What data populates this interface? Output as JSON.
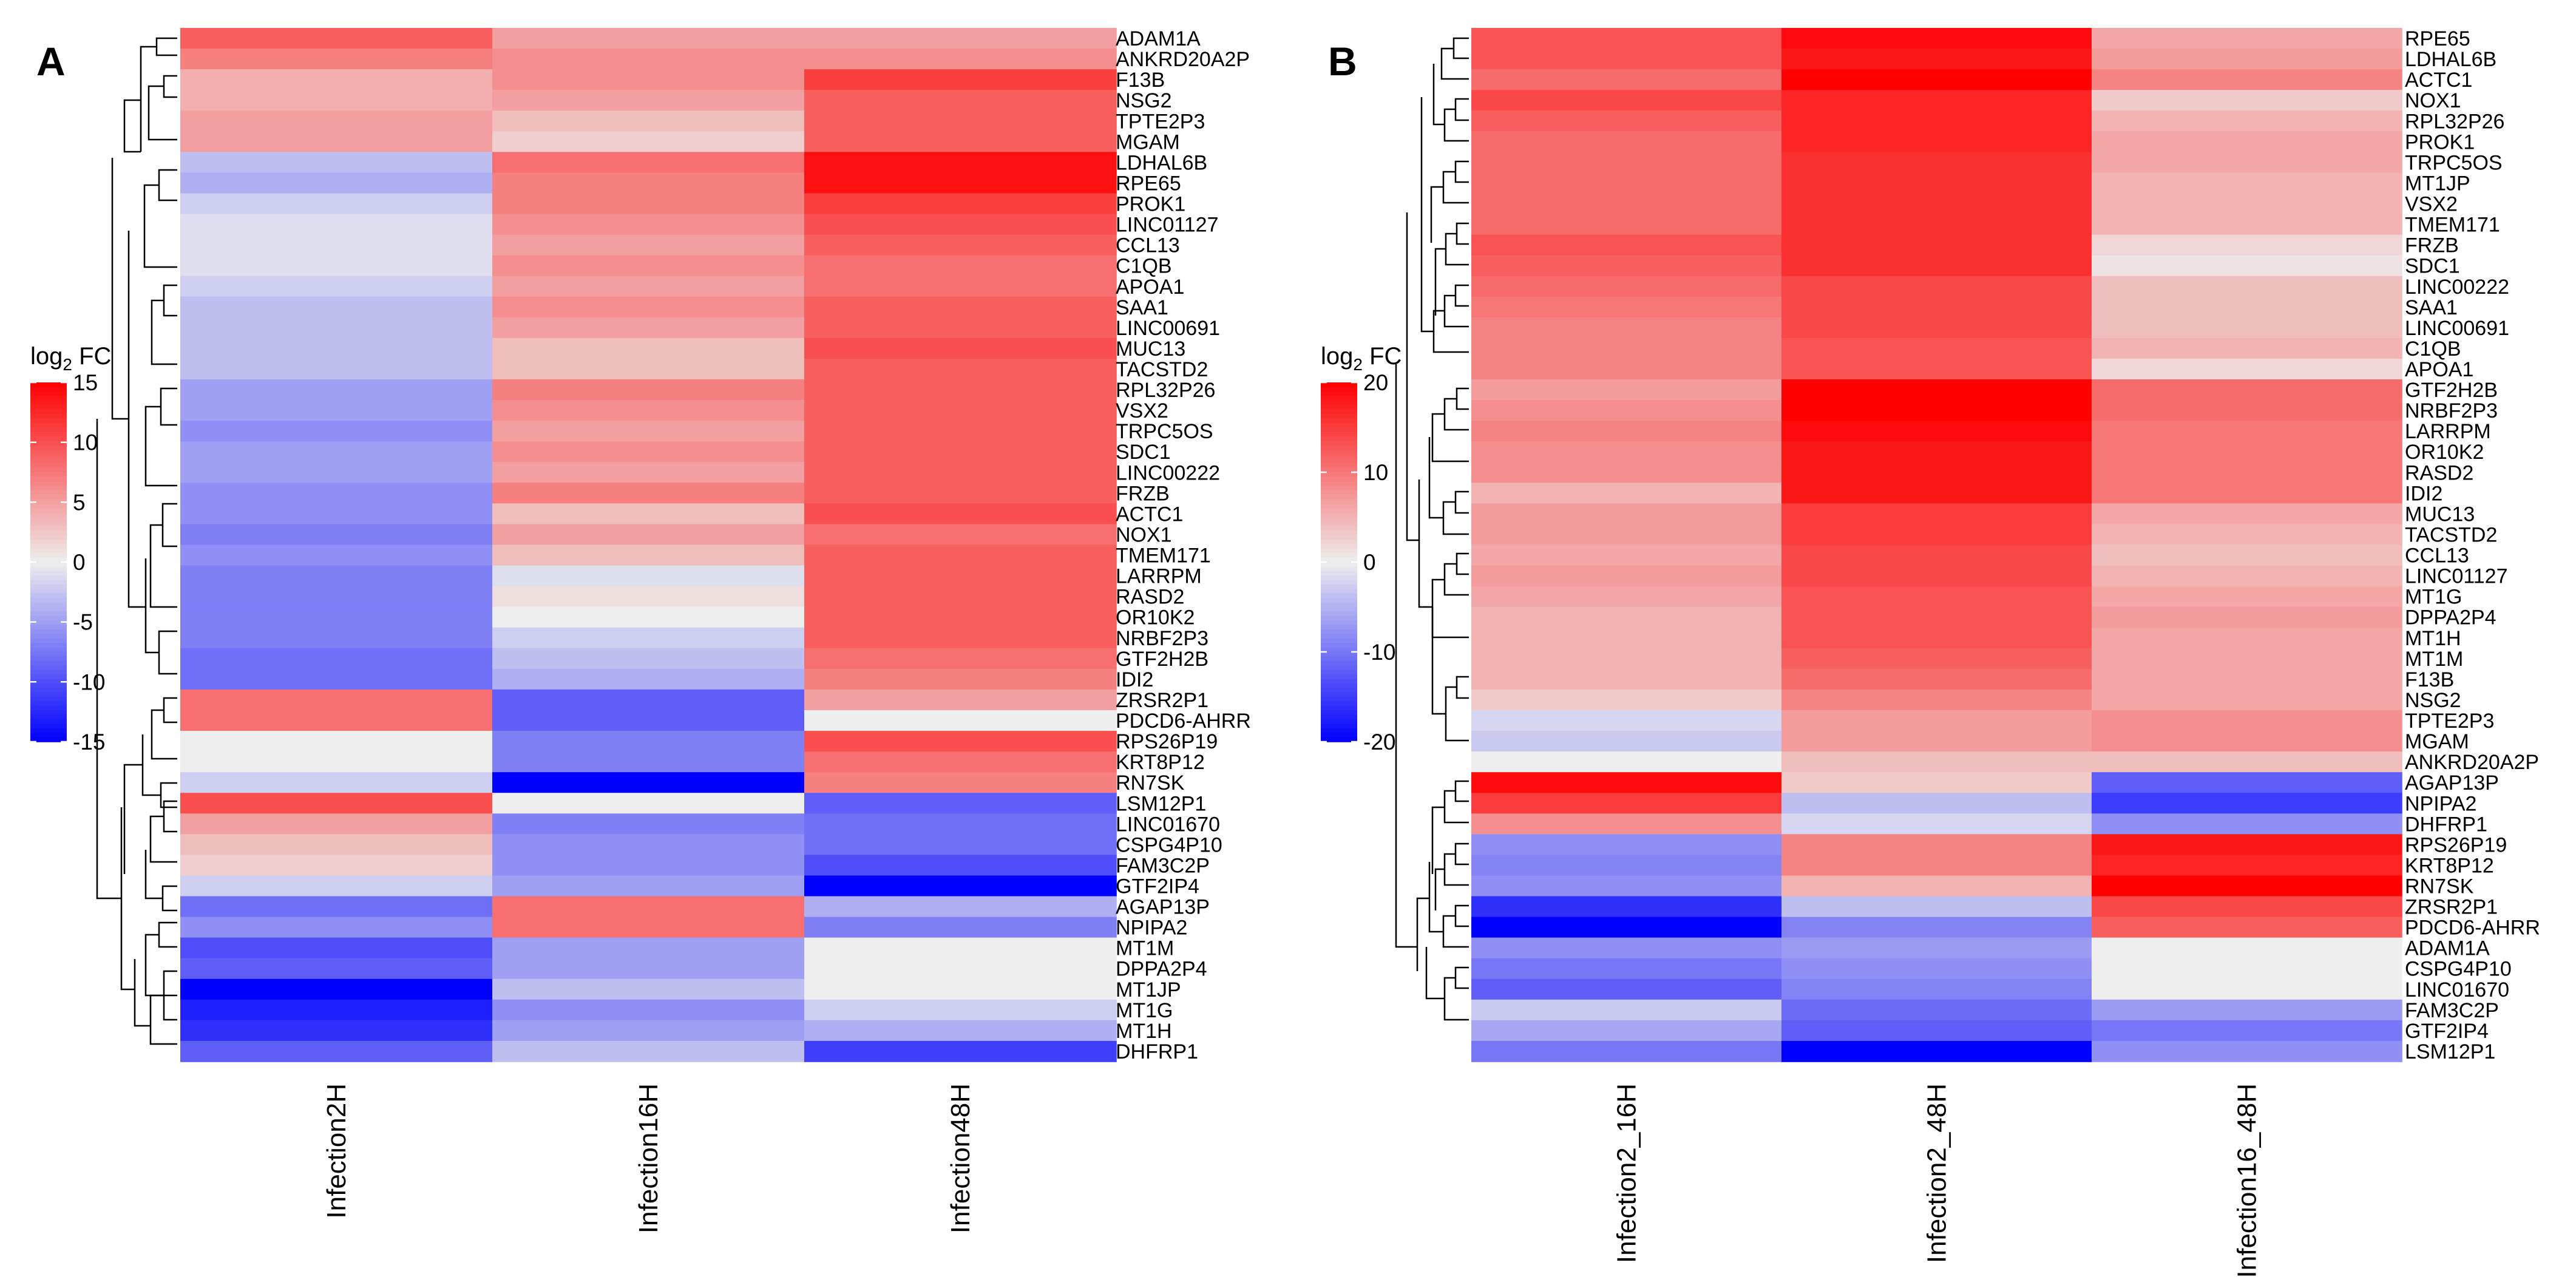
{
  "chart_data": [
    {
      "type": "heatmap",
      "panel": "A",
      "legend": {
        "title_base": "log",
        "title_sub": "2",
        "title_suffix": " FC",
        "range": [
          -15,
          15
        ],
        "ticks": [
          15,
          10,
          5,
          0,
          -5,
          -10,
          -15
        ]
      },
      "colors": {
        "low": "#0000ff",
        "mid": "#eeeeee",
        "high": "#ff0000"
      },
      "columns": [
        "Infection2H",
        "Infection16H",
        "Infection48H"
      ],
      "rows": [
        {
          "gene": "ADAM1A",
          "values": [
            9,
            5,
            5
          ]
        },
        {
          "gene": "ANKRD20A2P",
          "values": [
            7,
            6,
            6
          ]
        },
        {
          "gene": "F13B",
          "values": [
            4,
            6,
            11
          ]
        },
        {
          "gene": "NSG2",
          "values": [
            4,
            5,
            9
          ]
        },
        {
          "gene": "TPTE2P3",
          "values": [
            5,
            3,
            9
          ]
        },
        {
          "gene": "MGAM",
          "values": [
            5,
            2,
            9
          ]
        },
        {
          "gene": "LDHAL6B",
          "values": [
            -3,
            8,
            14
          ]
        },
        {
          "gene": "RPE65",
          "values": [
            -4,
            7,
            14
          ]
        },
        {
          "gene": "PROK1",
          "values": [
            -2,
            7,
            11
          ]
        },
        {
          "gene": "LINC01127",
          "values": [
            -1,
            6,
            10
          ]
        },
        {
          "gene": "CCL13",
          "values": [
            -1,
            5,
            9
          ]
        },
        {
          "gene": "C1QB",
          "values": [
            -1,
            6,
            8
          ]
        },
        {
          "gene": "APOA1",
          "values": [
            -2,
            5,
            8
          ]
        },
        {
          "gene": "SAA1",
          "values": [
            -3,
            6,
            9
          ]
        },
        {
          "gene": "LINC00691",
          "values": [
            -3,
            5,
            9
          ]
        },
        {
          "gene": "MUC13",
          "values": [
            -3,
            3,
            10
          ]
        },
        {
          "gene": "TACSTD2",
          "values": [
            -3,
            3,
            9
          ]
        },
        {
          "gene": "RPL32P26",
          "values": [
            -5,
            7,
            9
          ]
        },
        {
          "gene": "VSX2",
          "values": [
            -5,
            6,
            9
          ]
        },
        {
          "gene": "TRPC5OS",
          "values": [
            -6,
            5,
            9
          ]
        },
        {
          "gene": "SDC1",
          "values": [
            -5,
            6,
            9
          ]
        },
        {
          "gene": "LINC00222",
          "values": [
            -5,
            5,
            9
          ]
        },
        {
          "gene": "FRZB",
          "values": [
            -6,
            7,
            9
          ]
        },
        {
          "gene": "ACTC1",
          "values": [
            -6,
            3,
            10
          ]
        },
        {
          "gene": "NOX1",
          "values": [
            -7,
            5,
            8
          ]
        },
        {
          "gene": "TMEM171",
          "values": [
            -6,
            3,
            9
          ]
        },
        {
          "gene": "LARRPM",
          "values": [
            -7,
            -1,
            9
          ]
        },
        {
          "gene": "RASD2",
          "values": [
            -7,
            1,
            9
          ]
        },
        {
          "gene": "OR10K2",
          "values": [
            -7,
            0,
            9
          ]
        },
        {
          "gene": "NRBF2P3",
          "values": [
            -7,
            -2,
            9
          ]
        },
        {
          "gene": "GTF2H2B",
          "values": [
            -8,
            -3,
            8
          ]
        },
        {
          "gene": "IDI2",
          "values": [
            -8,
            -4,
            7
          ]
        },
        {
          "gene": "ZRSR2P1",
          "values": [
            8,
            -9,
            5
          ]
        },
        {
          "gene": "PDCD6-AHRR",
          "values": [
            8,
            -9,
            0
          ]
        },
        {
          "gene": "RPS26P19",
          "values": [
            0,
            -7,
            10
          ]
        },
        {
          "gene": "KRT8P12",
          "values": [
            0,
            -7,
            8
          ]
        },
        {
          "gene": "RN7SK",
          "values": [
            -2,
            -15,
            7
          ]
        },
        {
          "gene": "LSM12P1",
          "values": [
            10,
            0,
            -9
          ]
        },
        {
          "gene": "LINC01670",
          "values": [
            5,
            -7,
            -8
          ]
        },
        {
          "gene": "CSPG4P10",
          "values": [
            3,
            -6,
            -8
          ]
        },
        {
          "gene": "FAM3C2P",
          "values": [
            2,
            -6,
            -10
          ]
        },
        {
          "gene": "GTF2IP4",
          "values": [
            -2,
            -5,
            -15
          ]
        },
        {
          "gene": "AGAP13P",
          "values": [
            -8,
            8,
            -4
          ]
        },
        {
          "gene": "NPIPA2",
          "values": [
            -6,
            8,
            -7
          ]
        },
        {
          "gene": "MT1M",
          "values": [
            -10,
            -5,
            0
          ]
        },
        {
          "gene": "DPPA2P4",
          "values": [
            -9,
            -5,
            0
          ]
        },
        {
          "gene": "MT1JP",
          "values": [
            -15,
            -3,
            0
          ]
        },
        {
          "gene": "MT1G",
          "values": [
            -13,
            -6,
            -2
          ]
        },
        {
          "gene": "MT1H",
          "values": [
            -12,
            -5,
            -4
          ]
        },
        {
          "gene": "DHFRP1",
          "values": [
            -9,
            -3,
            -11
          ]
        }
      ]
    },
    {
      "type": "heatmap",
      "panel": "B",
      "legend": {
        "title_base": "log",
        "title_sub": "2",
        "title_suffix": " FC",
        "range": [
          -20,
          20
        ],
        "ticks": [
          20,
          10,
          0,
          -10,
          -20
        ]
      },
      "colors": {
        "low": "#0000ff",
        "mid": "#eeeeee",
        "high": "#ff0000"
      },
      "columns": [
        "Infection2_16H",
        "Infection2_48H",
        "Infection16_48H"
      ],
      "rows": [
        {
          "gene": "RPE65",
          "values": [
            13,
            19,
            6
          ]
        },
        {
          "gene": "LDHAL6B",
          "values": [
            13,
            18,
            7
          ]
        },
        {
          "gene": "ACTC1",
          "values": [
            11,
            20,
            9
          ]
        },
        {
          "gene": "NOX1",
          "values": [
            14,
            17,
            3
          ]
        },
        {
          "gene": "RPL32P26",
          "values": [
            12,
            17,
            5
          ]
        },
        {
          "gene": "PROK1",
          "values": [
            11,
            17,
            6
          ]
        },
        {
          "gene": "TRPC5OS",
          "values": [
            11,
            16,
            6
          ]
        },
        {
          "gene": "MT1JP",
          "values": [
            11,
            16,
            5
          ]
        },
        {
          "gene": "VSX2",
          "values": [
            11,
            16,
            5
          ]
        },
        {
          "gene": "TMEM171",
          "values": [
            11,
            16,
            5
          ]
        },
        {
          "gene": "FRZB",
          "values": [
            13,
            16,
            2
          ]
        },
        {
          "gene": "SDC1",
          "values": [
            12,
            16,
            1
          ]
        },
        {
          "gene": "LINC00222",
          "values": [
            11,
            14,
            4
          ]
        },
        {
          "gene": "SAA1",
          "values": [
            10,
            14,
            4
          ]
        },
        {
          "gene": "LINC00691",
          "values": [
            9,
            14,
            4
          ]
        },
        {
          "gene": "C1QB",
          "values": [
            9,
            13,
            5
          ]
        },
        {
          "gene": "APOA1",
          "values": [
            9,
            13,
            2
          ]
        },
        {
          "gene": "GTF2H2B",
          "values": [
            7,
            20,
            11
          ]
        },
        {
          "gene": "NRBF2P3",
          "values": [
            8,
            20,
            11
          ]
        },
        {
          "gene": "LARRPM",
          "values": [
            9,
            19,
            10
          ]
        },
        {
          "gene": "OR10K2",
          "values": [
            8,
            18,
            10
          ]
        },
        {
          "gene": "RASD2",
          "values": [
            8,
            18,
            10
          ]
        },
        {
          "gene": "IDI2",
          "values": [
            5,
            18,
            10
          ]
        },
        {
          "gene": "MUC13",
          "values": [
            7,
            15,
            6
          ]
        },
        {
          "gene": "TACSTD2",
          "values": [
            7,
            15,
            5
          ]
        },
        {
          "gene": "CCL13",
          "values": [
            6,
            14,
            4
          ]
        },
        {
          "gene": "LINC01127",
          "values": [
            7,
            14,
            5
          ]
        },
        {
          "gene": "MT1G",
          "values": [
            6,
            13,
            6
          ]
        },
        {
          "gene": "DPPA2P4",
          "values": [
            5,
            13,
            7
          ]
        },
        {
          "gene": "MT1H",
          "values": [
            5,
            13,
            6
          ]
        },
        {
          "gene": "MT1M",
          "values": [
            5,
            12,
            6
          ]
        },
        {
          "gene": "F13B",
          "values": [
            5,
            11,
            6
          ]
        },
        {
          "gene": "NSG2",
          "values": [
            3,
            9,
            6
          ]
        },
        {
          "gene": "TPTE2P3",
          "values": [
            -2,
            7,
            8
          ]
        },
        {
          "gene": "MGAM",
          "values": [
            -3,
            7,
            8
          ]
        },
        {
          "gene": "ANKRD20A2P",
          "values": [
            0,
            4,
            4
          ]
        },
        {
          "gene": "AGAP13P",
          "values": [
            19,
            3,
            -12
          ]
        },
        {
          "gene": "NPIPA2",
          "values": [
            15,
            -4,
            -15
          ]
        },
        {
          "gene": "DHFRP1",
          "values": [
            8,
            -2,
            -8
          ]
        },
        {
          "gene": "RPS26P19",
          "values": [
            -8,
            9,
            18
          ]
        },
        {
          "gene": "KRT8P12",
          "values": [
            -9,
            9,
            17
          ]
        },
        {
          "gene": "RN7SK",
          "values": [
            -8,
            5,
            20
          ]
        },
        {
          "gene": "ZRSR2P1",
          "values": [
            -16,
            -4,
            14
          ]
        },
        {
          "gene": "PDCD6-AHRR",
          "values": [
            -20,
            -9,
            12
          ]
        },
        {
          "gene": "ADAM1A",
          "values": [
            -8,
            -7,
            0
          ]
        },
        {
          "gene": "CSPG4P10",
          "values": [
            -10,
            -8,
            0
          ]
        },
        {
          "gene": "LINC01670",
          "values": [
            -12,
            -9,
            0
          ]
        },
        {
          "gene": "FAM3C2P",
          "values": [
            -3,
            -11,
            -7
          ]
        },
        {
          "gene": "GTF2IP4",
          "values": [
            -6,
            -12,
            -10
          ]
        },
        {
          "gene": "LSM12P1",
          "values": [
            -10,
            -20,
            -8
          ]
        }
      ]
    }
  ]
}
